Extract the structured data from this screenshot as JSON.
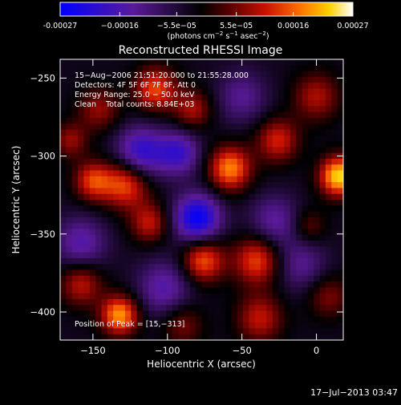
{
  "chart_data": {
    "type": "heatmap",
    "title": "Reconstructed RHESSI Image",
    "xlabel": "Heliocentric X (arcsec)",
    "ylabel": "Heliocentric Y (arcsec)",
    "xlim": [
      -172,
      18
    ],
    "ylim": [
      -418,
      -238
    ],
    "x_ticks": [
      -150,
      -100,
      -50,
      0
    ],
    "y_ticks": [
      -250,
      -300,
      -350,
      -400
    ],
    "x_tick_labels": [
      "−150",
      "−100",
      "−50",
      "0"
    ],
    "y_tick_labels": [
      "−250",
      "−300",
      "−350",
      "−400"
    ],
    "colorbar": {
      "range": [
        -0.00027,
        0.00027
      ],
      "tick_values": [
        -0.00027,
        -0.00016,
        -5.5e-05,
        5.5e-05,
        0.00016,
        0.00027
      ],
      "tick_labels": [
        "-0.00027",
        "−0.00016",
        "−5.5e−05",
        "5.5e−05",
        "0.00016",
        "0.00027"
      ],
      "unit_prefix": "(photons cm",
      "unit_exp1": "−2",
      "unit_mid": " s",
      "unit_exp2": "−1",
      "unit_mid2": " asec",
      "unit_exp3": "−2",
      "unit_suffix": ")"
    },
    "annotations": [
      "15−Aug−2006 21:51:20.000 to 21:55:28.000",
      "Detectors: 4F 5F 6F 7F 8F, Att 0",
      "Energy Range: 25.0 − 50.0 keV",
      "Clean    Total counts: 8.84E+03"
    ],
    "peak_label": "Position of Peak = [15,−313]",
    "peak": {
      "x": 15,
      "y": -313
    },
    "blobs": [
      {
        "x": 15,
        "y": -313,
        "v": 1.0,
        "s": 9
      },
      {
        "x": -80,
        "y": -340,
        "v": -0.85,
        "s": 11
      },
      {
        "x": -118,
        "y": -298,
        "v": -0.65,
        "s": 12
      },
      {
        "x": -92,
        "y": -298,
        "v": -0.55,
        "s": 10
      },
      {
        "x": -158,
        "y": -356,
        "v": -0.45,
        "s": 12
      },
      {
        "x": -102,
        "y": -385,
        "v": -0.45,
        "s": 13
      },
      {
        "x": -28,
        "y": -342,
        "v": -0.4,
        "s": 12
      },
      {
        "x": -10,
        "y": -370,
        "v": -0.35,
        "s": 12
      },
      {
        "x": -50,
        "y": -262,
        "v": -0.35,
        "s": 12
      },
      {
        "x": -132,
        "y": -402,
        "v": 0.85,
        "s": 9
      },
      {
        "x": -76,
        "y": -367,
        "v": 0.7,
        "s": 10
      },
      {
        "x": -128,
        "y": -318,
        "v": 0.7,
        "s": 11
      },
      {
        "x": -150,
        "y": -316,
        "v": 0.6,
        "s": 9
      },
      {
        "x": -58,
        "y": -308,
        "v": 0.8,
        "s": 10
      },
      {
        "x": -108,
        "y": -257,
        "v": 0.65,
        "s": 10
      },
      {
        "x": -112,
        "y": -343,
        "v": 0.5,
        "s": 9
      },
      {
        "x": -40,
        "y": -367,
        "v": 0.65,
        "s": 11
      },
      {
        "x": -26,
        "y": -290,
        "v": 0.55,
        "s": 10
      },
      {
        "x": -38,
        "y": -404,
        "v": 0.5,
        "s": 11
      },
      {
        "x": 0,
        "y": -262,
        "v": 0.45,
        "s": 11
      },
      {
        "x": -158,
        "y": -382,
        "v": 0.5,
        "s": 10
      },
      {
        "x": -146,
        "y": -270,
        "v": 0.4,
        "s": 10
      },
      {
        "x": -165,
        "y": -290,
        "v": 0.4,
        "s": 8
      },
      {
        "x": -83,
        "y": -270,
        "v": 0.45,
        "s": 9
      },
      {
        "x": -90,
        "y": -408,
        "v": 0.35,
        "s": 10
      },
      {
        "x": 8,
        "y": -390,
        "v": 0.35,
        "s": 10
      },
      {
        "x": -5,
        "y": -345,
        "v": 0.3,
        "s": 8
      }
    ]
  },
  "footer": {
    "date_stamp": "17−Jul−2013 03:47"
  }
}
